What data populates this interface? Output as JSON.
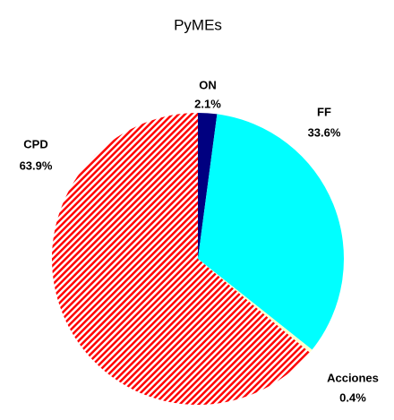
{
  "chart_data": {
    "type": "pie",
    "title": "PyMEs",
    "categories": [
      "ON",
      "FF",
      "Acciones",
      "CPD"
    ],
    "values": [
      2.1,
      33.6,
      0.4,
      63.9
    ],
    "value_labels": [
      "2.1%",
      "33.6%",
      "0.4%",
      "63.9%"
    ],
    "colors": [
      "#000080",
      "#00ffff",
      "#ffffcc",
      "hatch-red"
    ]
  }
}
